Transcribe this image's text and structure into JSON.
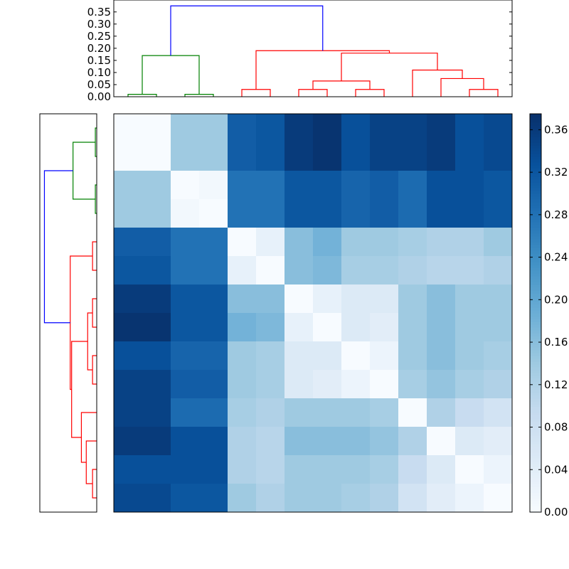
{
  "chart_data": {
    "type": "heatmap",
    "description_free": true,
    "n": 14,
    "matrix": [
      [
        0.0,
        0.0,
        0.14,
        0.14,
        0.31,
        0.32,
        0.36,
        0.37,
        0.33,
        0.35,
        0.35,
        0.36,
        0.33,
        0.34
      ],
      [
        0.0,
        0.0,
        0.14,
        0.14,
        0.31,
        0.32,
        0.36,
        0.37,
        0.33,
        0.35,
        0.35,
        0.36,
        0.33,
        0.34
      ],
      [
        0.14,
        0.14,
        0.0,
        0.01,
        0.28,
        0.28,
        0.32,
        0.32,
        0.3,
        0.31,
        0.29,
        0.33,
        0.33,
        0.32
      ],
      [
        0.14,
        0.14,
        0.01,
        0.0,
        0.28,
        0.28,
        0.32,
        0.32,
        0.3,
        0.31,
        0.29,
        0.33,
        0.33,
        0.32
      ],
      [
        0.31,
        0.31,
        0.28,
        0.28,
        0.0,
        0.03,
        0.16,
        0.18,
        0.14,
        0.14,
        0.13,
        0.12,
        0.12,
        0.14
      ],
      [
        0.32,
        0.32,
        0.28,
        0.28,
        0.03,
        0.0,
        0.16,
        0.17,
        0.13,
        0.13,
        0.12,
        0.11,
        0.11,
        0.12
      ],
      [
        0.36,
        0.36,
        0.32,
        0.32,
        0.16,
        0.16,
        0.0,
        0.03,
        0.05,
        0.05,
        0.14,
        0.16,
        0.14,
        0.14
      ],
      [
        0.37,
        0.37,
        0.32,
        0.32,
        0.18,
        0.17,
        0.03,
        0.0,
        0.05,
        0.04,
        0.14,
        0.16,
        0.14,
        0.14
      ],
      [
        0.33,
        0.33,
        0.3,
        0.3,
        0.14,
        0.13,
        0.05,
        0.05,
        0.0,
        0.02,
        0.14,
        0.16,
        0.14,
        0.13
      ],
      [
        0.35,
        0.35,
        0.31,
        0.31,
        0.14,
        0.13,
        0.05,
        0.04,
        0.02,
        0.0,
        0.13,
        0.15,
        0.13,
        0.12
      ],
      [
        0.35,
        0.35,
        0.29,
        0.29,
        0.13,
        0.12,
        0.14,
        0.14,
        0.14,
        0.13,
        0.0,
        0.12,
        0.09,
        0.07
      ],
      [
        0.36,
        0.36,
        0.33,
        0.33,
        0.12,
        0.11,
        0.16,
        0.16,
        0.16,
        0.15,
        0.12,
        0.0,
        0.05,
        0.04
      ],
      [
        0.33,
        0.33,
        0.33,
        0.33,
        0.12,
        0.11,
        0.14,
        0.14,
        0.14,
        0.13,
        0.09,
        0.05,
        0.0,
        0.02
      ],
      [
        0.34,
        0.34,
        0.32,
        0.32,
        0.14,
        0.12,
        0.14,
        0.14,
        0.13,
        0.12,
        0.07,
        0.04,
        0.02,
        0.0
      ]
    ],
    "vmin": 0.0,
    "vmax": 0.375,
    "colormap": "Blues",
    "colorbar_ticks": [
      "0.00",
      "0.04",
      "0.08",
      "0.12",
      "0.16",
      "0.20",
      "0.24",
      "0.28",
      "0.32",
      "0.36"
    ],
    "dendrogram_ticks": [
      "0.00",
      "0.05",
      "0.10",
      "0.15",
      "0.20",
      "0.25",
      "0.30",
      "0.35"
    ],
    "dendrogram_ylim": [
      0,
      0.3875
    ],
    "dendrogram_links": [
      {
        "left": 0,
        "right": 1,
        "height": 0.01,
        "color": "#008000"
      },
      {
        "left": 2,
        "right": 3,
        "height": 0.01,
        "color": "#008000"
      },
      {
        "left": 4,
        "right": 5,
        "height": 0.03,
        "color": "#ff0000"
      },
      {
        "left": 6,
        "right": 7,
        "height": 0.03,
        "color": "#ff0000"
      },
      {
        "left": 8,
        "right": 9,
        "height": 0.03,
        "color": "#ff0000"
      },
      {
        "left": 12,
        "right": 13,
        "height": 0.03,
        "color": "#ff0000"
      },
      {
        "left": 11,
        "right": "m5",
        "height": 0.075,
        "color": "#ff0000"
      },
      {
        "left": 10,
        "right": "m6",
        "height": 0.11,
        "color": "#ff0000"
      },
      {
        "left": "m3",
        "right": "m4",
        "height": 0.065,
        "color": "#ff0000"
      },
      {
        "left": "m8",
        "right": "m7",
        "height": 0.18,
        "color": "#ff0000"
      },
      {
        "left": "m2",
        "right": "m9",
        "height": 0.19,
        "color": "#ff0000"
      },
      {
        "left": "m0",
        "right": "m1",
        "height": 0.17,
        "color": "#008000"
      },
      {
        "left": "m11",
        "right": "m10",
        "height": 0.375,
        "color": "#0000ff"
      }
    ],
    "colors": {
      "cluster_green": "#008000",
      "cluster_red": "#ff0000",
      "root_blue": "#0000ff"
    }
  }
}
